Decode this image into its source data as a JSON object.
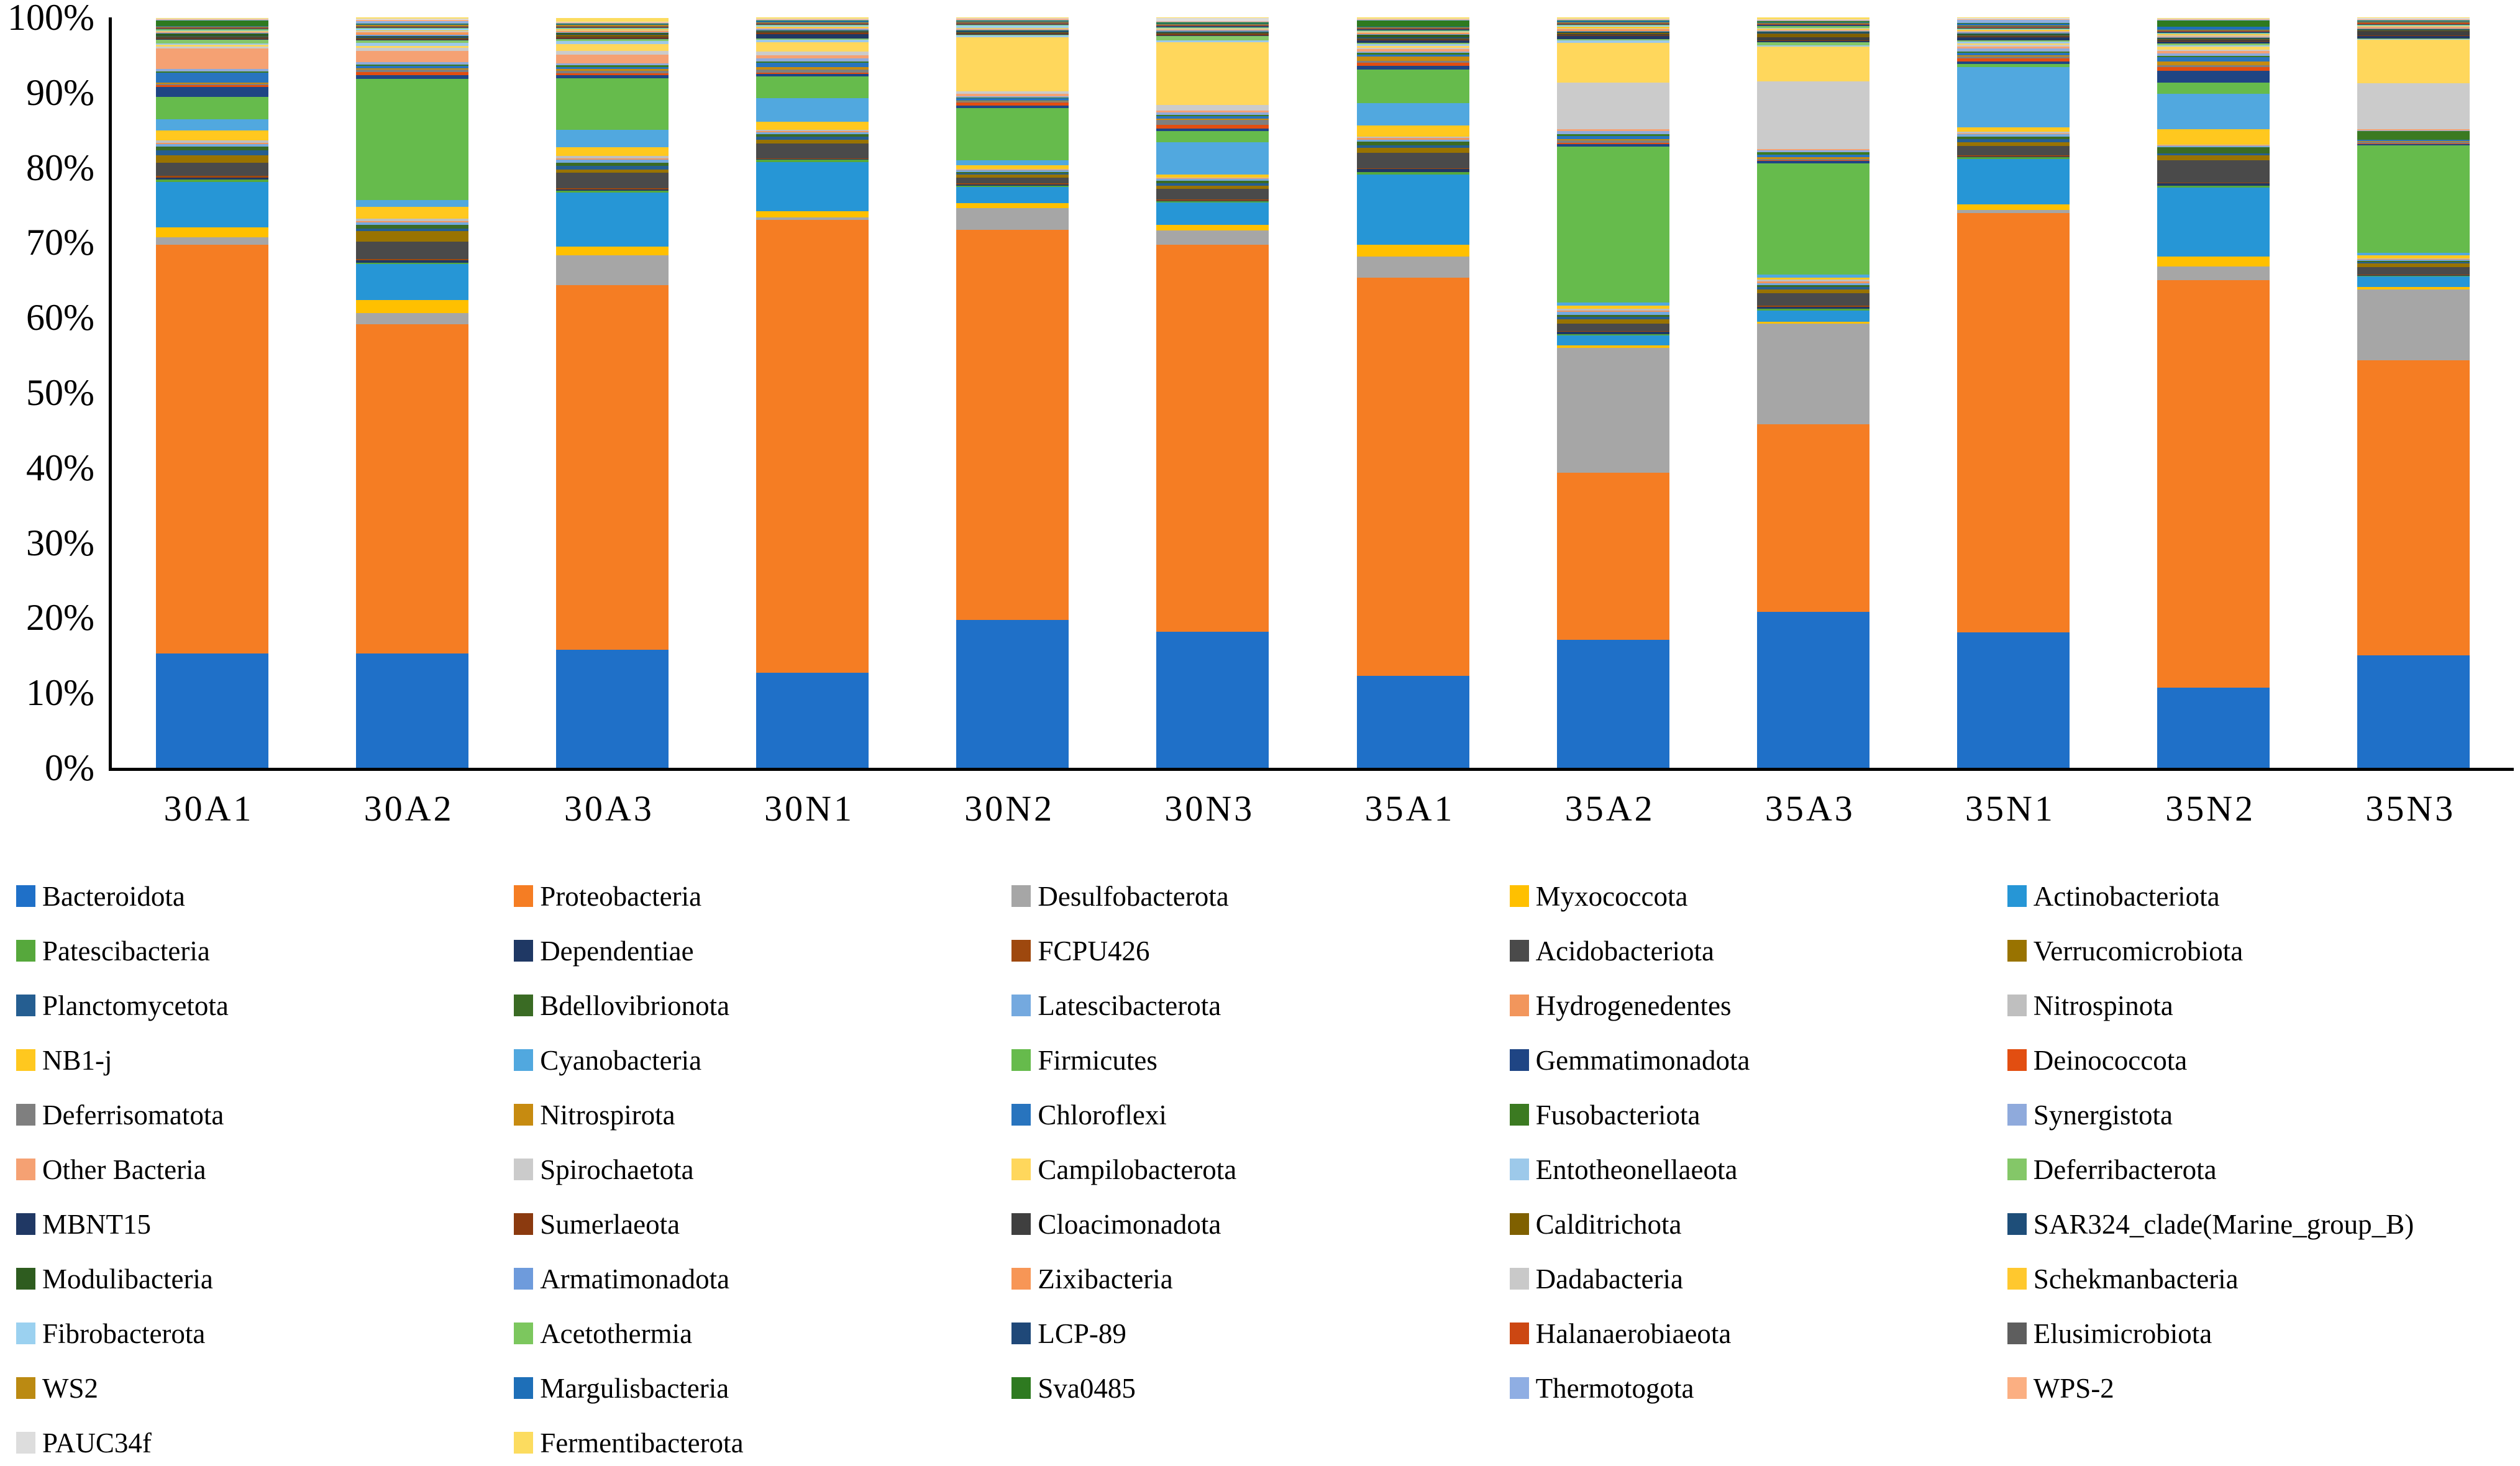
{
  "accent_colors": {
    "axis_line": "#000000",
    "background": "#ffffff"
  },
  "chart_data": {
    "type": "bar",
    "subtype": "stacked-100-percent",
    "title": "",
    "xlabel": "",
    "ylabel": "",
    "grid": false,
    "legend_position": "bottom",
    "legend_columns": 5,
    "y_axis": {
      "range": [
        0,
        100
      ],
      "ticks": [
        "0%",
        "10%",
        "20%",
        "30%",
        "40%",
        "50%",
        "60%",
        "70%",
        "80%",
        "90%",
        "100%"
      ]
    },
    "categories": [
      "30A1",
      "30A2",
      "30A3",
      "30N1",
      "30N2",
      "30N3",
      "35A1",
      "35A2",
      "35A3",
      "35N1",
      "35N2",
      "35N3"
    ],
    "series": [
      {
        "name": "Bacteroidota",
        "color": "#1F70C8",
        "values": [
          15.5,
          15.3,
          16.0,
          12.8,
          20.3,
          18.4,
          12.4,
          17.3,
          20.8,
          18.3,
          10.7,
          15.6
        ]
      },
      {
        "name": "Proteobacteria",
        "color": "#F57D23",
        "values": [
          55.5,
          44.2,
          49.5,
          60.8,
          53.5,
          52.5,
          53.8,
          22.5,
          24.9,
          56.8,
          54.6,
          41.0
        ]
      },
      {
        "name": "Desulfobacterota",
        "color": "#A6A6A6",
        "values": [
          1.0,
          1.5,
          4.0,
          0.3,
          3.0,
          1.9,
          2.9,
          16.8,
          13.4,
          0.4,
          1.8,
          9.9
        ]
      },
      {
        "name": "Myxococcota",
        "color": "#FFC000",
        "values": [
          1.3,
          1.8,
          1.2,
          0.9,
          0.7,
          0.8,
          1.6,
          0.4,
          0.3,
          0.8,
          1.4,
          0.3
        ]
      },
      {
        "name": "Actinobacteriota",
        "color": "#2696D6",
        "values": [
          6.2,
          4.8,
          7.3,
          6.6,
          2.2,
          3.0,
          9.5,
          1.3,
          1.5,
          6.1,
          9.2,
          1.5
        ]
      },
      {
        "name": "Patescibacteria",
        "color": "#56A83C",
        "values": [
          0.3,
          0.2,
          0.3,
          0.3,
          0.2,
          0.2,
          0.3,
          0.2,
          0.2,
          0.3,
          0.3,
          0.1
        ]
      },
      {
        "name": "Dependentiae",
        "color": "#1F3864",
        "values": [
          0.3,
          0.3,
          0.2,
          0.1,
          0.2,
          0.1,
          0.4,
          0.3,
          0.3,
          0.1,
          0.3,
          0.1
        ]
      },
      {
        "name": "FCPU426",
        "color": "#9E480E",
        "values": [
          0.2,
          0.2,
          0.1,
          0.1,
          0.1,
          0.1,
          0.1,
          0.1,
          0.1,
          0.1,
          0.1,
          0.1
        ]
      },
      {
        "name": "Acidobacteriota",
        "color": "#4A4A4A",
        "values": [
          1.8,
          2.3,
          2.1,
          2.0,
          0.8,
          1.5,
          2.1,
          1.0,
          1.7,
          1.3,
          3.0,
          1.0
        ]
      },
      {
        "name": "Verrucomicrobiota",
        "color": "#997300",
        "values": [
          1.0,
          1.4,
          0.5,
          0.5,
          0.4,
          0.4,
          0.7,
          0.6,
          0.5,
          0.5,
          0.6,
          0.5
        ]
      },
      {
        "name": "Planctomycetota",
        "color": "#255E91",
        "values": [
          0.7,
          0.4,
          0.5,
          0.4,
          0.2,
          0.3,
          0.3,
          0.3,
          0.3,
          0.4,
          0.3,
          0.2
        ]
      },
      {
        "name": "Bdellovibrionota",
        "color": "#3A6B24",
        "values": [
          0.5,
          0.5,
          0.4,
          0.3,
          0.2,
          0.4,
          0.5,
          0.3,
          0.3,
          0.4,
          0.8,
          0.2
        ]
      },
      {
        "name": "Latescibacterota",
        "color": "#74A9DF",
        "values": [
          0.3,
          0.3,
          0.4,
          0.3,
          0.2,
          0.2,
          0.3,
          0.4,
          0.2,
          0.3,
          0.2,
          0.1
        ]
      },
      {
        "name": "Hydrogenedentes",
        "color": "#F2965C",
        "values": [
          0.2,
          0.2,
          0.2,
          0.1,
          0.1,
          0.1,
          0.2,
          0.2,
          0.3,
          0.1,
          0.1,
          0.1
        ]
      },
      {
        "name": "Nitrospinota",
        "color": "#BFBFBF",
        "values": [
          0.3,
          0.3,
          0.3,
          0.2,
          0.1,
          0.1,
          0.2,
          0.2,
          0.2,
          0.2,
          0.1,
          0.1
        ]
      },
      {
        "name": "NB1-j",
        "color": "#FFC81F",
        "values": [
          1.4,
          1.6,
          1.2,
          1.1,
          0.5,
          0.4,
          1.5,
          0.4,
          0.3,
          0.6,
          2.0,
          0.4
        ]
      },
      {
        "name": "Cyanobacteria",
        "color": "#51A8DF",
        "values": [
          1.5,
          0.9,
          2.4,
          3.2,
          0.7,
          4.4,
          3.0,
          0.5,
          0.4,
          8.2,
          4.8,
          0.4
        ]
      },
      {
        "name": "Firmicutes",
        "color": "#66BB4C",
        "values": [
          3.0,
          16.3,
          7.0,
          2.9,
          7.2,
          1.5,
          4.6,
          21.0,
          14.8,
          0.4,
          1.5,
          14.9
        ]
      },
      {
        "name": "Gemmatimonadota",
        "color": "#1F4584",
        "values": [
          1.4,
          0.5,
          0.4,
          0.3,
          0.3,
          0.3,
          0.5,
          0.3,
          0.3,
          0.3,
          1.6,
          0.2
        ]
      },
      {
        "name": "Deinococcota",
        "color": "#E24E11",
        "values": [
          0.2,
          0.4,
          0.2,
          0.2,
          0.4,
          0.5,
          0.4,
          0.2,
          0.1,
          0.5,
          0.5,
          0.1
        ]
      },
      {
        "name": "Deferrisomatota",
        "color": "#7F7F7F",
        "values": [
          0.2,
          0.3,
          0.4,
          0.4,
          0.2,
          0.7,
          0.2,
          0.3,
          0.2,
          0.2,
          0.2,
          0.2
        ]
      },
      {
        "name": "Nitrospirota",
        "color": "#C78B10",
        "values": [
          0.2,
          0.2,
          0.2,
          0.3,
          0.1,
          0.2,
          0.6,
          0.2,
          0.2,
          0.2,
          0.5,
          0.1
        ]
      },
      {
        "name": "Chloroflexi",
        "color": "#2874BE",
        "values": [
          1.3,
          0.3,
          0.3,
          0.6,
          0.3,
          0.3,
          0.3,
          0.4,
          0.3,
          0.3,
          0.6,
          0.2
        ]
      },
      {
        "name": "Fusobacteriota",
        "color": "#3B7A21",
        "values": [
          0.2,
          0.2,
          0.2,
          0.2,
          0.1,
          0.2,
          0.2,
          0.3,
          0.4,
          0.2,
          0.2,
          1.2
        ]
      },
      {
        "name": "Synergistota",
        "color": "#8FAADC",
        "values": [
          0.3,
          0.3,
          0.3,
          0.4,
          0.2,
          0.3,
          0.2,
          0.4,
          0.2,
          0.4,
          0.3,
          0.1
        ]
      },
      {
        "name": "Other Bacteria",
        "color": "#F5A173",
        "values": [
          2.8,
          1.5,
          1.2,
          0.4,
          0.3,
          0.3,
          0.3,
          0.2,
          0.2,
          0.3,
          0.3,
          0.2
        ]
      },
      {
        "name": "Spirochaetota",
        "color": "#CBCBCB",
        "values": [
          0.3,
          0.4,
          0.5,
          0.5,
          0.4,
          0.7,
          0.2,
          6.3,
          9.0,
          0.2,
          0.2,
          6.4
        ]
      },
      {
        "name": "Campilobacterota",
        "color": "#FFD75C",
        "values": [
          0.2,
          0.3,
          0.9,
          1.3,
          7.4,
          8.5,
          0.3,
          5.4,
          4.6,
          0.2,
          0.4,
          6.0
        ]
      },
      {
        "name": "Entotheonellaeota",
        "color": "#9DC9EA",
        "values": [
          0.2,
          0.4,
          0.4,
          0.3,
          0.2,
          0.3,
          0.2,
          0.3,
          0.2,
          0.2,
          0.2,
          0.1
        ]
      },
      {
        "name": "Deferribacterota",
        "color": "#84C768",
        "values": [
          0.5,
          0.3,
          0.3,
          0.2,
          0.1,
          0.6,
          0.2,
          0.2,
          0.4,
          0.2,
          0.2,
          0.1
        ]
      },
      {
        "name": "MBNT15",
        "color": "#203864",
        "values": [
          0.1,
          0.1,
          0.1,
          0.6,
          0.1,
          0.1,
          0.3,
          0.4,
          0.2,
          0.4,
          0.3,
          0.3
        ]
      },
      {
        "name": "Sumerlaeota",
        "color": "#8B3A0F",
        "values": [
          0.1,
          0.1,
          0.1,
          0.1,
          0.1,
          0.1,
          0.1,
          0.1,
          0.1,
          0.1,
          0.1,
          0.1
        ]
      },
      {
        "name": "Cloacimonadota",
        "color": "#3F3F3F",
        "values": [
          0.1,
          0.1,
          0.1,
          0.1,
          0.1,
          0.1,
          0.1,
          0.2,
          0.4,
          0.1,
          0.1,
          0.6
        ]
      },
      {
        "name": "Calditrichota",
        "color": "#7F6000",
        "values": [
          0.1,
          0.1,
          0.3,
          0.1,
          0.1,
          0.1,
          0.1,
          0.1,
          0.5,
          0.1,
          0.1,
          0.1
        ]
      },
      {
        "name": "SAR324_clade(Marine_group_B)",
        "color": "#1E4E79",
        "values": [
          0.1,
          0.1,
          0.1,
          0.1,
          0.1,
          0.1,
          0.1,
          0.1,
          0.1,
          0.1,
          0.1,
          0.1
        ]
      },
      {
        "name": "Modulibacteria",
        "color": "#2E5C1F",
        "values": [
          0.3,
          0.1,
          0.1,
          0.1,
          0.1,
          0.1,
          0.4,
          0.1,
          0.1,
          0.1,
          0.1,
          0.1
        ]
      },
      {
        "name": "Armatimonadota",
        "color": "#6E9BDC",
        "values": [
          0.1,
          0.2,
          0.1,
          0.1,
          0.1,
          0.1,
          0.1,
          0.1,
          0.1,
          0.2,
          0.1,
          0.1
        ]
      },
      {
        "name": "Zixibacteria",
        "color": "#F79656",
        "values": [
          0.1,
          0.3,
          0.2,
          0.1,
          0.1,
          0.1,
          0.1,
          0.2,
          0.1,
          0.1,
          0.1,
          0.1
        ]
      },
      {
        "name": "Dadabacteria",
        "color": "#C9C9C9",
        "values": [
          0.1,
          0.2,
          0.1,
          0.1,
          0.1,
          0.1,
          0.1,
          0.1,
          0.1,
          0.1,
          0.1,
          0.1
        ]
      },
      {
        "name": "Schekmanbacteria",
        "color": "#FFC82E",
        "values": [
          0.1,
          0.1,
          0.1,
          0.2,
          0.1,
          0.1,
          0.1,
          0.3,
          0.1,
          0.1,
          0.2,
          0.1
        ]
      },
      {
        "name": "Fibrobacterota",
        "color": "#9BD1F0",
        "values": [
          0.1,
          0.2,
          0.1,
          0.1,
          0.3,
          0.1,
          0.1,
          0.1,
          0.1,
          0.1,
          0.1,
          0.1
        ]
      },
      {
        "name": "Acetothermia",
        "color": "#7CC75E",
        "values": [
          0.1,
          0.1,
          0.1,
          0.1,
          0.1,
          0.1,
          0.1,
          0.1,
          0.3,
          0.1,
          0.1,
          0.1
        ]
      },
      {
        "name": "LCP-89",
        "color": "#1F4878",
        "values": [
          0.1,
          0.1,
          0.1,
          0.1,
          0.1,
          0.1,
          0.1,
          0.1,
          0.1,
          0.1,
          0.1,
          0.1
        ]
      },
      {
        "name": "Halanaerobiaeota",
        "color": "#CC4712",
        "values": [
          0.1,
          0.1,
          0.1,
          0.1,
          0.1,
          0.1,
          0.1,
          0.1,
          0.1,
          0.1,
          0.1,
          0.1
        ]
      },
      {
        "name": "Elusimicrobiota",
        "color": "#5E5E5E",
        "values": [
          0.1,
          0.1,
          0.1,
          0.1,
          0.1,
          0.1,
          0.1,
          0.1,
          0.1,
          0.1,
          0.1,
          0.1
        ]
      },
      {
        "name": "WS2",
        "color": "#BB8A12",
        "values": [
          0.1,
          0.1,
          0.1,
          0.1,
          0.1,
          0.1,
          0.1,
          0.1,
          0.1,
          0.1,
          0.1,
          0.1
        ]
      },
      {
        "name": "Margulisbacteria",
        "color": "#1E6FB8",
        "values": [
          0.1,
          0.1,
          0.1,
          0.1,
          0.1,
          0.1,
          0.1,
          0.1,
          0.1,
          0.3,
          0.4,
          0.1
        ]
      },
      {
        "name": "Sva0485",
        "color": "#2E7A20",
        "values": [
          0.7,
          0.1,
          0.1,
          0.1,
          0.1,
          0.1,
          0.8,
          0.1,
          0.1,
          0.1,
          0.8,
          0.1
        ]
      },
      {
        "name": "Thermotogota",
        "color": "#8FAEE3",
        "values": [
          0.1,
          0.3,
          0.1,
          0.1,
          0.1,
          0.1,
          0.1,
          0.1,
          0.1,
          0.4,
          0.1,
          0.1
        ]
      },
      {
        "name": "WPS-2",
        "color": "#FBAF82",
        "values": [
          0.1,
          0.2,
          0.1,
          0.1,
          0.1,
          0.1,
          0.1,
          0.1,
          0.1,
          0.1,
          0.1,
          0.1
        ]
      },
      {
        "name": "PAUC34f",
        "color": "#DDDDDD",
        "values": [
          0.1,
          0.2,
          0.1,
          0.1,
          0.1,
          0.4,
          0.1,
          0.1,
          0.1,
          0.1,
          0.1,
          0.1
        ]
      },
      {
        "name": "Fermentibacterota",
        "color": "#FCDC5F",
        "values": [
          0.1,
          0.1,
          0.5,
          0.1,
          0.1,
          0.1,
          0.1,
          0.1,
          0.2,
          0.1,
          0.1,
          0.1
        ]
      }
    ]
  }
}
